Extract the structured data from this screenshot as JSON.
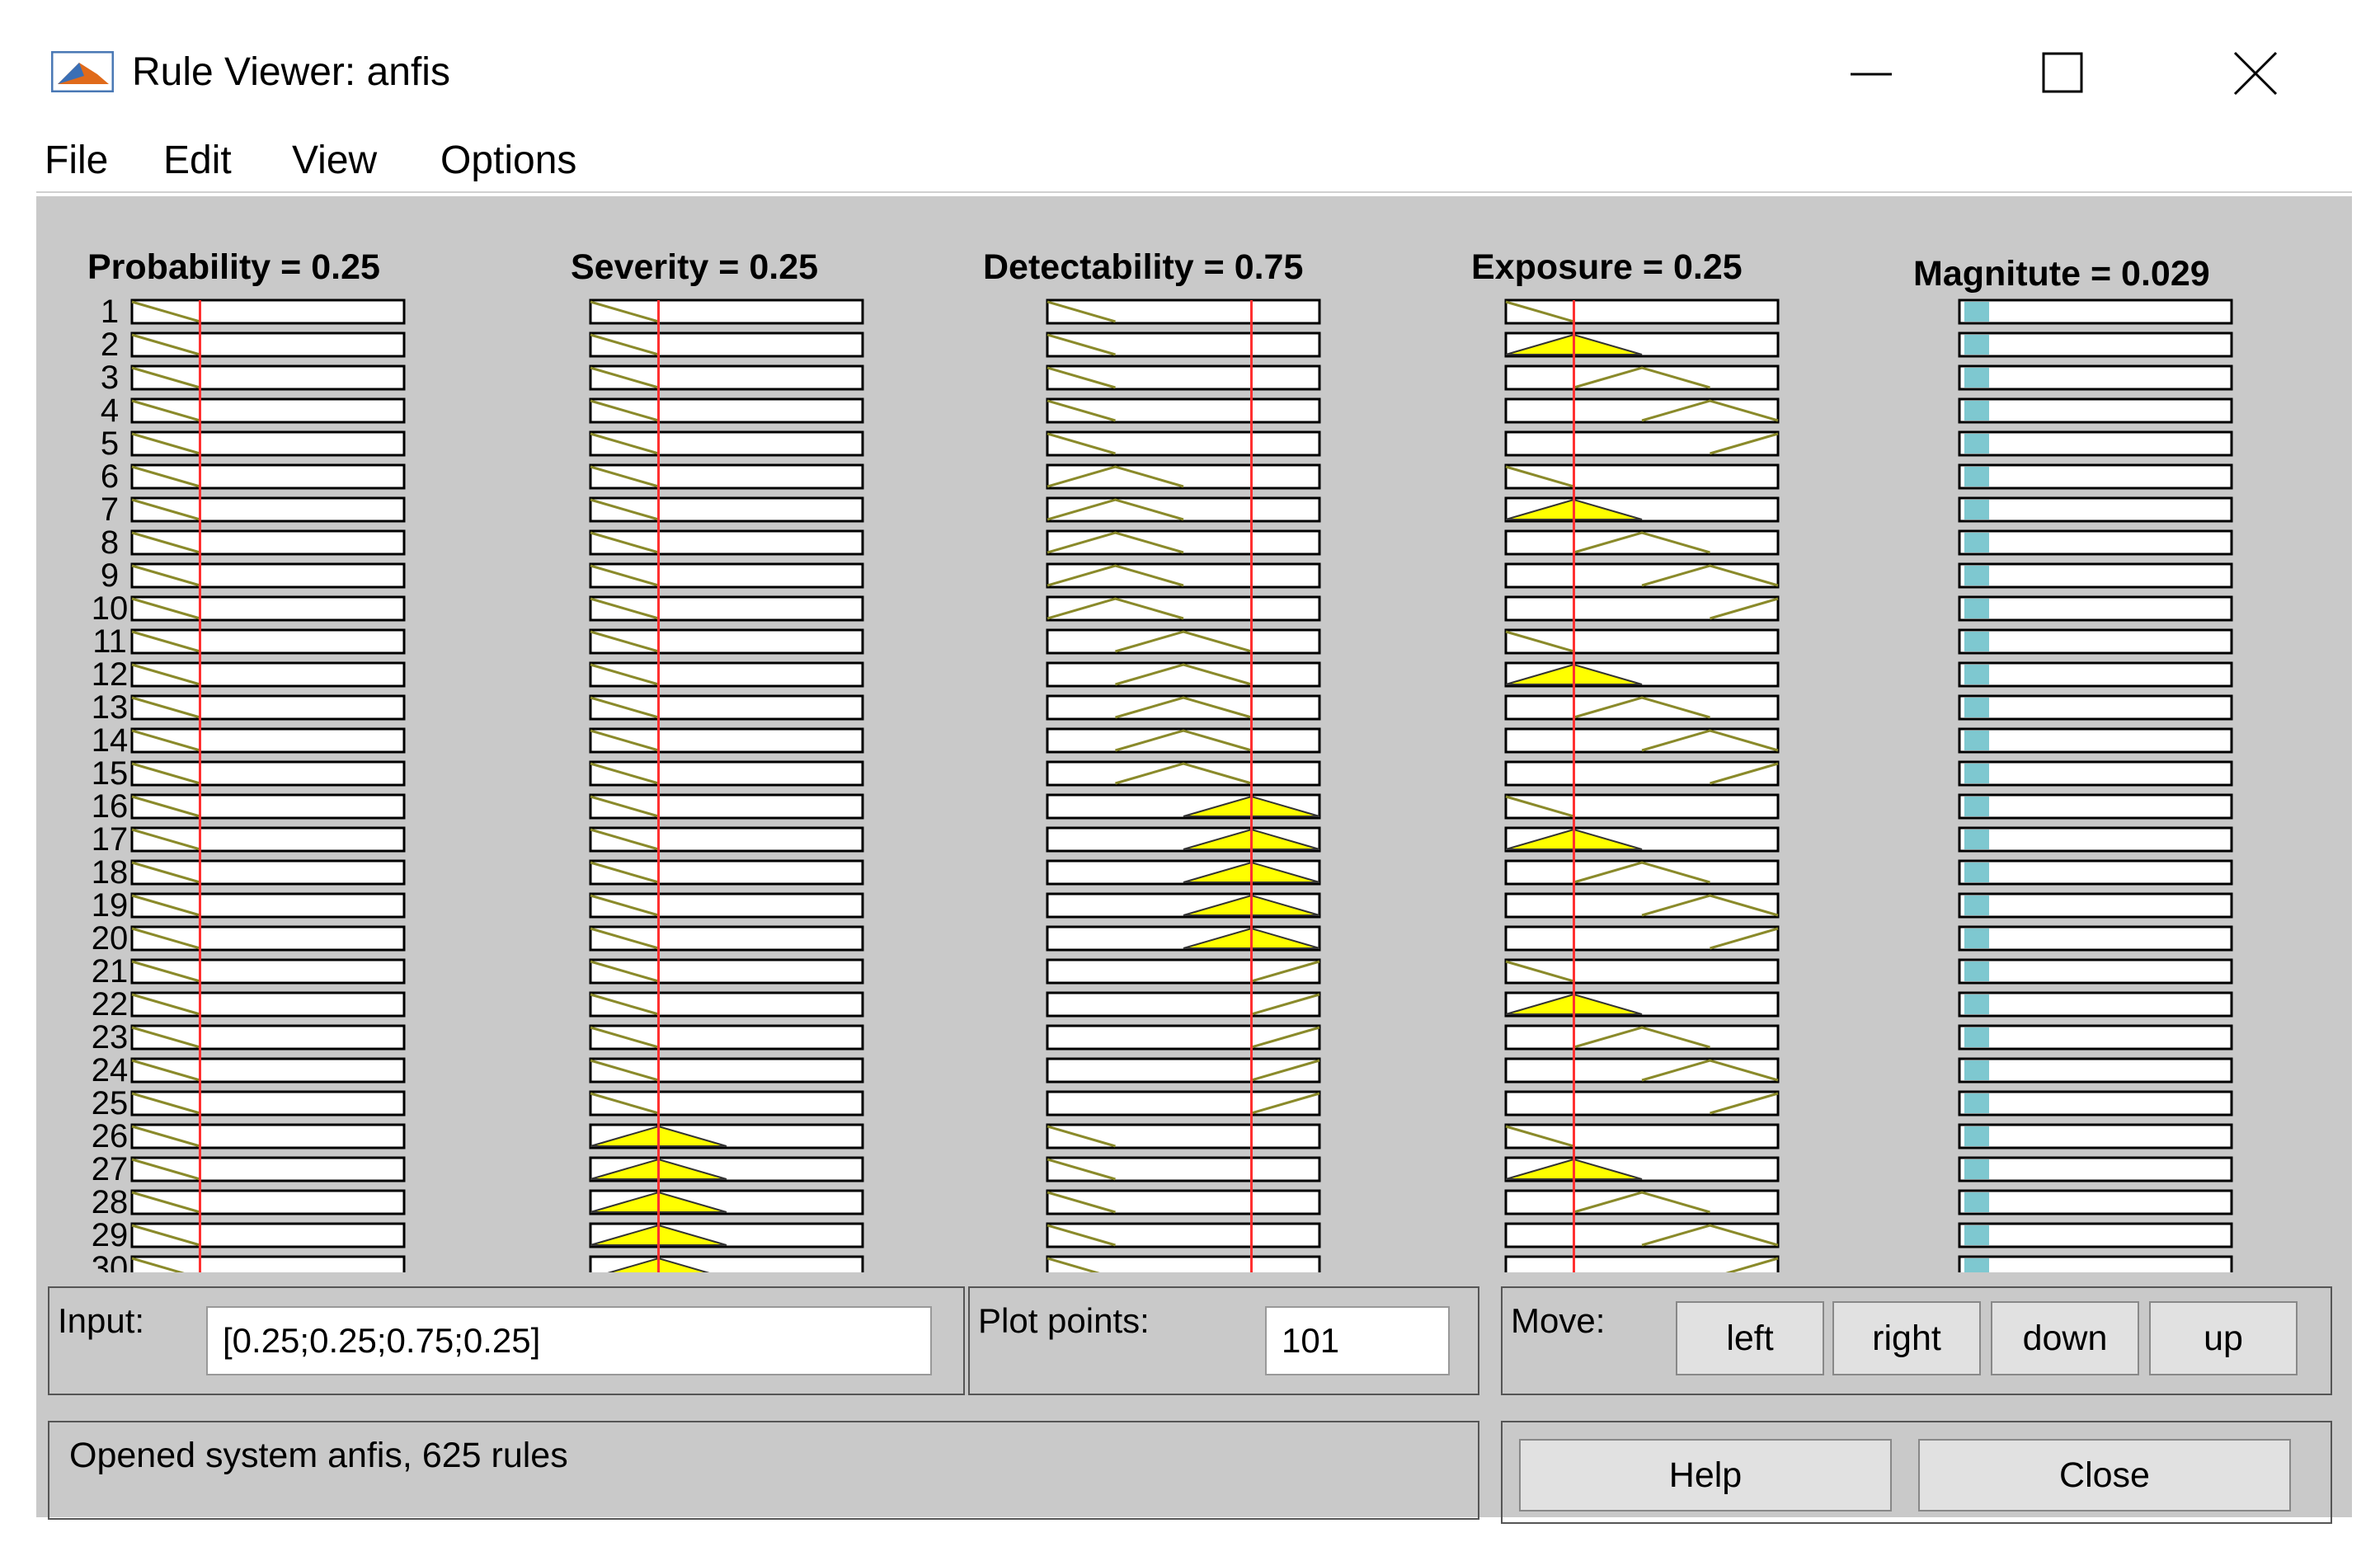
{
  "window": {
    "title": "Rule Viewer: anfis",
    "controls": [
      "minimize-icon",
      "maximize-icon",
      "close-icon"
    ]
  },
  "menu": [
    "File",
    "Edit",
    "View",
    "Options"
  ],
  "variables": [
    {
      "label": "Probability = 0.25",
      "value": 0.25
    },
    {
      "label": "Severity = 0.25",
      "value": 0.25
    },
    {
      "label": "Detectability = 0.75",
      "value": 0.75
    },
    {
      "label": "Exposure = 0.25",
      "value": 0.25
    }
  ],
  "output": {
    "label": "Magnitute = 0.029",
    "value": 0.029
  },
  "rules": [
    "1",
    "2",
    "3",
    "4",
    "5",
    "6",
    "7",
    "8",
    "9",
    "10",
    "11",
    "12",
    "13",
    "14",
    "15",
    "16",
    "17",
    "18",
    "19",
    "20",
    "21",
    "22",
    "23",
    "24",
    "25",
    "26",
    "27",
    "28",
    "29",
    "30"
  ],
  "input": {
    "label": "Input:",
    "value": "[0.25;0.25;0.75;0.25]"
  },
  "plot_points": {
    "label": "Plot points:",
    "value": "101"
  },
  "move": {
    "label": "Move:",
    "buttons": [
      "left",
      "right",
      "down",
      "up"
    ]
  },
  "status": "Opened system anfis, 625 rules",
  "buttons": {
    "help": "Help",
    "close": "Close"
  },
  "colors": {
    "membership_fill": "#ffff00",
    "membership_line": "#8a8a2a",
    "cursor": "#ff3030",
    "output_bar": "#7ec8d0",
    "panel": "#c9c9c9"
  }
}
